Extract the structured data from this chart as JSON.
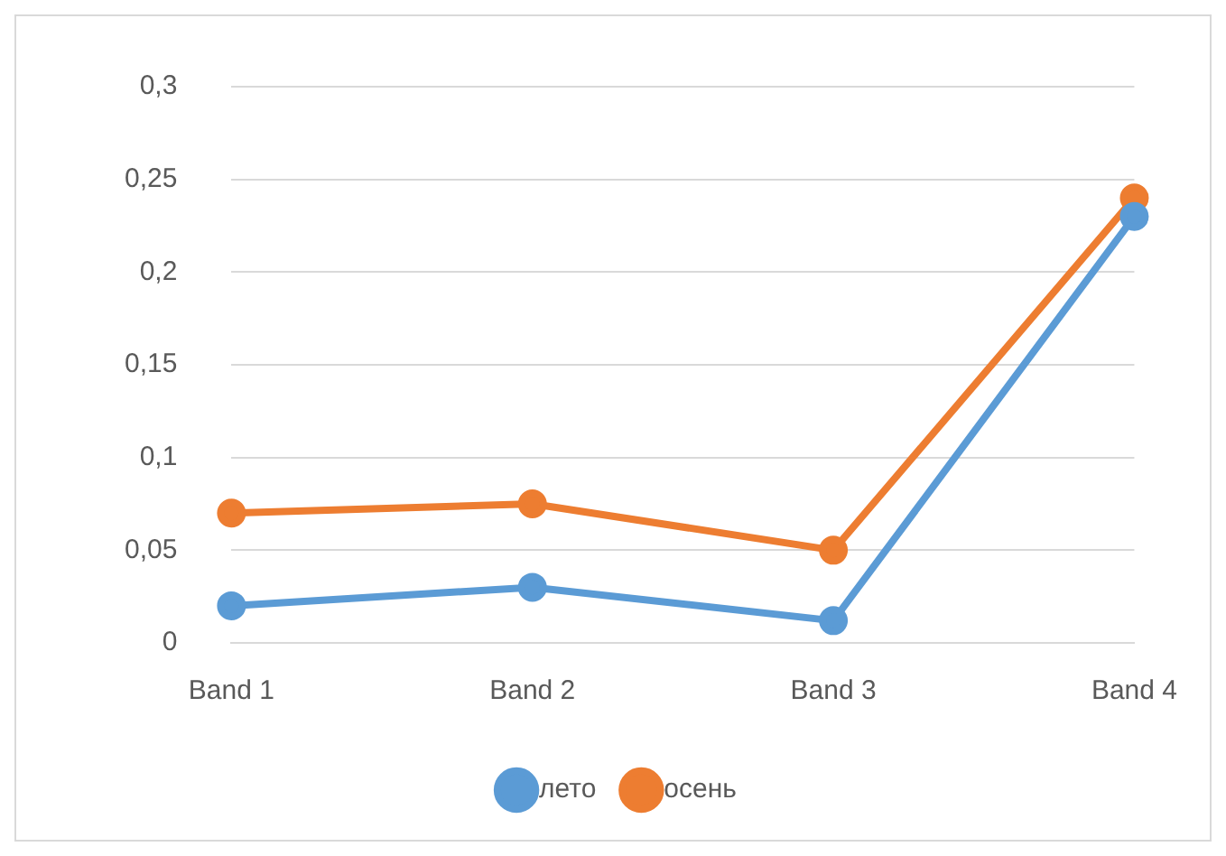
{
  "chart_data": {
    "type": "line",
    "categories": [
      "Band 1",
      "Band 2",
      "Band 3",
      "Band 4"
    ],
    "series": [
      {
        "name": "лето",
        "color": "#5b9bd5",
        "values": [
          0.02,
          0.03,
          0.012,
          0.23
        ]
      },
      {
        "name": "осень",
        "color": "#ed7d31",
        "values": [
          0.07,
          0.075,
          0.05,
          0.24
        ]
      }
    ],
    "ylim": [
      0,
      0.3
    ],
    "yticks": [
      0,
      {
        "value": 0.05,
        "label": "0,05"
      },
      {
        "value": 0.1,
        "label": "0,1"
      },
      {
        "value": 0.15,
        "label": "0,15"
      },
      {
        "value": 0.2,
        "label": "0,2"
      },
      {
        "value": 0.25,
        "label": "0,25"
      },
      {
        "value": 0.3,
        "label": "0,3"
      }
    ],
    "grid": "y",
    "legend": "bottom",
    "marker": "circle",
    "line_style": "solid"
  }
}
